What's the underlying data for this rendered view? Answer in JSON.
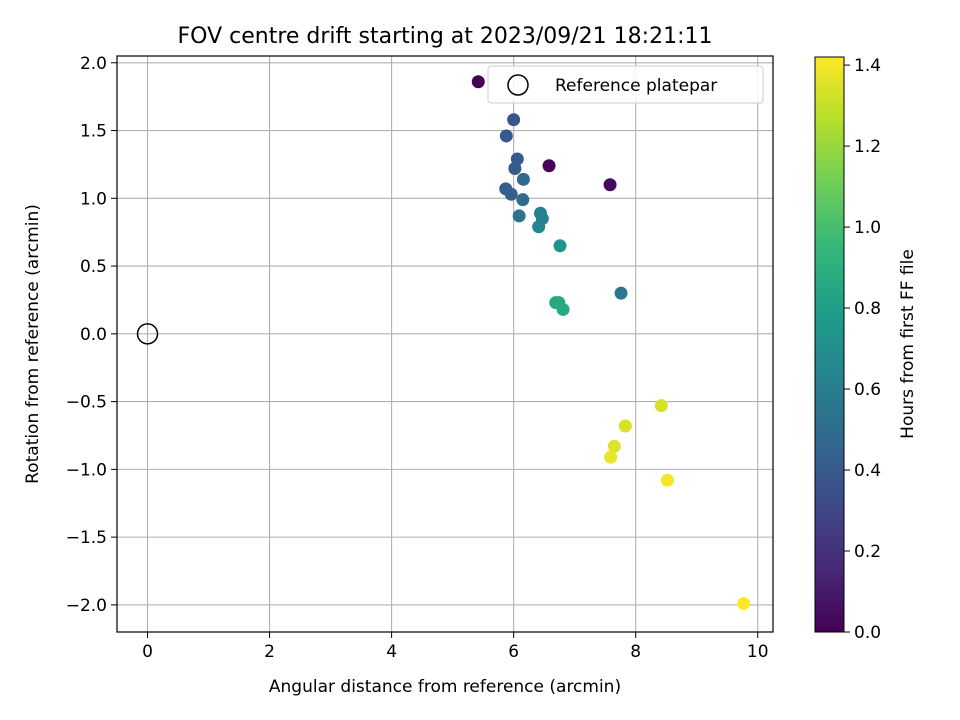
{
  "chart_data": {
    "type": "scatter",
    "title": "FOV centre drift starting at 2023/09/21 18:21:11",
    "xlabel": "Angular distance from reference (arcmin)",
    "ylabel": "Rotation from reference (arcmin)",
    "xlim": [
      -0.5,
      10.25
    ],
    "ylim": [
      -2.2,
      2.05
    ],
    "xticks": [
      0,
      2,
      4,
      6,
      8,
      10
    ],
    "yticks": [
      -2.0,
      -1.5,
      -1.0,
      -0.5,
      0.0,
      0.5,
      1.0,
      1.5,
      2.0
    ],
    "grid": true,
    "legend": {
      "placement": "top-right",
      "entries": [
        "Reference platepar"
      ]
    },
    "reference_point": {
      "x": 0,
      "y": 0,
      "name": "Reference platepar",
      "marker": "open-circle"
    },
    "colorbar": {
      "label": "Hours from first FF file",
      "colormap": "viridis",
      "range": [
        0.0,
        1.42
      ],
      "ticks": [
        0.0,
        0.2,
        0.4,
        0.6,
        0.8,
        1.0,
        1.2,
        1.4
      ]
    },
    "points": [
      {
        "x": 5.42,
        "y": 1.86,
        "c": 0.0
      },
      {
        "x": 6.58,
        "y": 1.24,
        "c": 0.02
      },
      {
        "x": 7.58,
        "y": 1.1,
        "c": 0.04
      },
      {
        "x": 6.0,
        "y": 1.58,
        "c": 0.38
      },
      {
        "x": 5.88,
        "y": 1.46,
        "c": 0.39
      },
      {
        "x": 6.06,
        "y": 1.29,
        "c": 0.4
      },
      {
        "x": 6.02,
        "y": 1.22,
        "c": 0.41
      },
      {
        "x": 5.87,
        "y": 1.07,
        "c": 0.42
      },
      {
        "x": 5.96,
        "y": 1.03,
        "c": 0.43
      },
      {
        "x": 6.16,
        "y": 1.14,
        "c": 0.48
      },
      {
        "x": 6.15,
        "y": 0.99,
        "c": 0.5
      },
      {
        "x": 6.09,
        "y": 0.87,
        "c": 0.54
      },
      {
        "x": 7.76,
        "y": 0.3,
        "c": 0.55
      },
      {
        "x": 6.44,
        "y": 0.89,
        "c": 0.62
      },
      {
        "x": 6.47,
        "y": 0.85,
        "c": 0.63
      },
      {
        "x": 6.41,
        "y": 0.79,
        "c": 0.64
      },
      {
        "x": 6.76,
        "y": 0.65,
        "c": 0.74
      },
      {
        "x": 6.69,
        "y": 0.23,
        "c": 0.84
      },
      {
        "x": 6.74,
        "y": 0.23,
        "c": 0.85
      },
      {
        "x": 6.81,
        "y": 0.18,
        "c": 0.86
      },
      {
        "x": 8.42,
        "y": -0.53,
        "c": 1.33
      },
      {
        "x": 7.83,
        "y": -0.68,
        "c": 1.34
      },
      {
        "x": 7.65,
        "y": -0.83,
        "c": 1.35
      },
      {
        "x": 7.59,
        "y": -0.91,
        "c": 1.38
      },
      {
        "x": 8.52,
        "y": -1.08,
        "c": 1.4
      },
      {
        "x": 9.77,
        "y": -1.99,
        "c": 1.42
      }
    ]
  }
}
